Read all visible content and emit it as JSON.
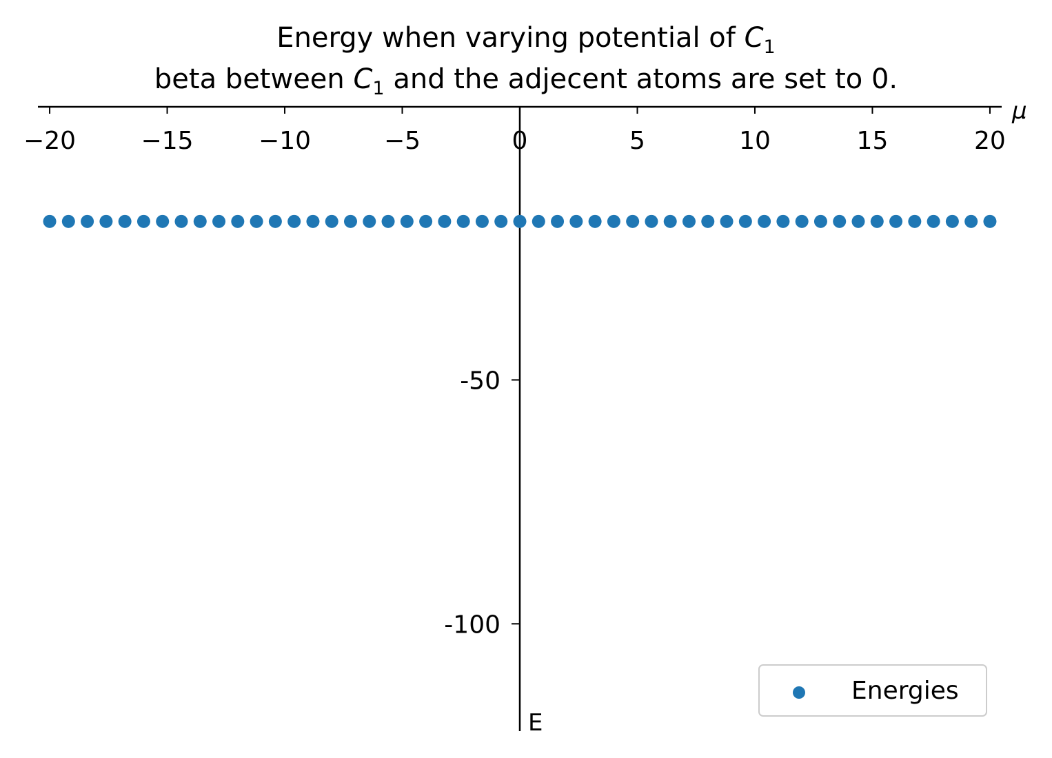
{
  "chart_data": {
    "type": "scatter",
    "title_lines": [
      {
        "pre": "Energy when varying potential of ",
        "sym": "C",
        "sub": "1",
        "post": ""
      },
      {
        "pre": "beta between ",
        "sym": "C",
        "sub": "1",
        "post": " and the adjecent atoms are set to 0."
      }
    ],
    "xlabel": "μ",
    "ylabel": "E",
    "xlim": [
      -20.5,
      20.5
    ],
    "ylim": [
      -122,
      6
    ],
    "x_ticks": [
      -20,
      -15,
      -10,
      -5,
      0,
      5,
      10,
      15,
      20
    ],
    "x_tick_labels": [
      "−20",
      "−15",
      "−10",
      "−5",
      "0",
      "5",
      "10",
      "15",
      "20"
    ],
    "y_ticks": [
      -50,
      -100
    ],
    "y_tick_labels": [
      "-50",
      "-100"
    ],
    "legend_position": "lower-right",
    "series": [
      {
        "name": "Energies",
        "color": "#1f77b4",
        "marker": "circle",
        "x": [
          -20.0,
          -19.2,
          -18.4,
          -17.6,
          -16.8,
          -16.0,
          -15.2,
          -14.4,
          -13.6,
          -12.8,
          -12.0,
          -11.2,
          -10.4,
          -9.6,
          -8.8,
          -8.0,
          -7.2,
          -6.4,
          -5.6,
          -4.8,
          -4.0,
          -3.2,
          -2.4,
          -1.6,
          -0.8,
          0.0,
          0.8,
          1.6,
          2.4,
          3.2,
          4.0,
          4.8,
          5.6,
          6.4,
          7.2,
          8.0,
          8.8,
          9.6,
          10.4,
          11.2,
          12.0,
          12.8,
          13.6,
          14.4,
          15.2,
          16.0,
          16.8,
          17.6,
          18.4,
          19.2,
          20.0
        ],
        "y": -17.5
      }
    ]
  }
}
